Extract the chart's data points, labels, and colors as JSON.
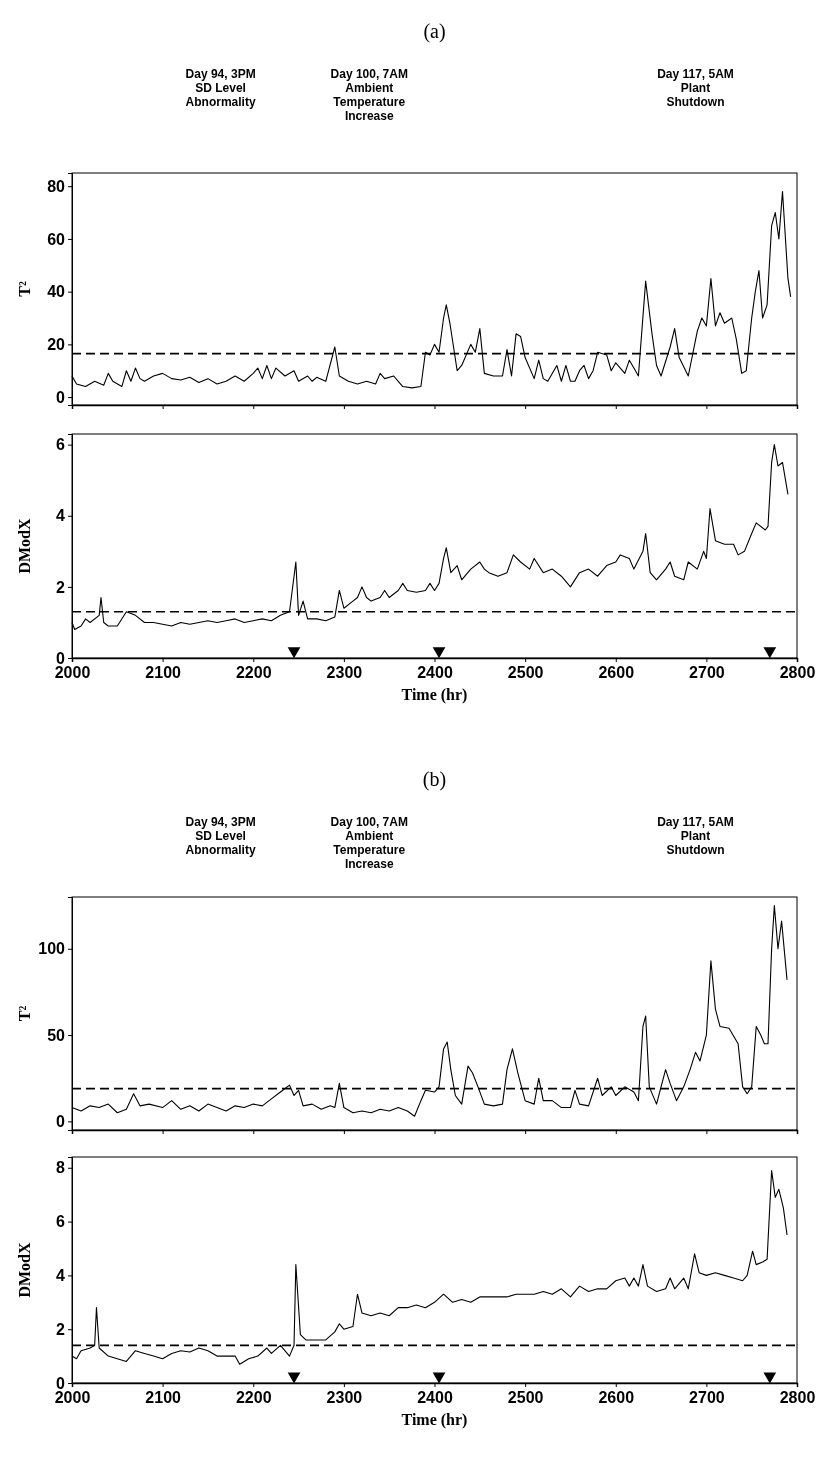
{
  "chart_data": [
    {
      "type": "line",
      "title": "(a)",
      "annotations": [
        "Day 94, 3PM\nSD Level\nAbnormality",
        "Day 100, 7AM\nAmbient\nTemperature\nIncrease",
        "Day 117, 5AM\nPlant\nShutdown"
      ],
      "ylabel": "T²",
      "xlim": [
        2000,
        2800
      ],
      "xticks": [
        2000,
        2100,
        2200,
        2300,
        2400,
        2500,
        2600,
        2700,
        2800
      ],
      "ylim": [
        -3,
        85
      ],
      "yticks": [
        0,
        20,
        40,
        60,
        80
      ],
      "tick_labels": "y",
      "series": [
        {
          "color": "#000000",
          "x": [
            2000,
            2005,
            2015,
            2025,
            2035,
            2040,
            2045,
            2055,
            2060,
            2065,
            2070,
            2075,
            2080,
            2090,
            2100,
            2110,
            2120,
            2130,
            2140,
            2150,
            2160,
            2170,
            2180,
            2190,
            2200,
            2205,
            2210,
            2215,
            2220,
            2225,
            2235,
            2245,
            2250,
            2260,
            2265,
            2270,
            2280,
            2290,
            2295,
            2305,
            2315,
            2325,
            2335,
            2340,
            2345,
            2355,
            2360,
            2365,
            2375,
            2385,
            2390,
            2395,
            2400,
            2405,
            2410,
            2413,
            2417,
            2425,
            2430,
            2440,
            2445,
            2450,
            2455,
            2465,
            2475,
            2480,
            2485,
            2490,
            2495,
            2500,
            2510,
            2515,
            2520,
            2525,
            2535,
            2540,
            2545,
            2550,
            2555,
            2560,
            2565,
            2570,
            2575,
            2580,
            2590,
            2595,
            2600,
            2610,
            2615,
            2620,
            2625,
            2633,
            2640,
            2645,
            2650,
            2660,
            2665,
            2670,
            2680,
            2690,
            2695,
            2700,
            2705,
            2710,
            2715,
            2720,
            2728,
            2733,
            2739,
            2744,
            2750,
            2754,
            2758,
            2762,
            2767,
            2772,
            2776,
            2780,
            2784,
            2790,
            2793
          ],
          "values": [
            8,
            5,
            4,
            6,
            4.5,
            9,
            6,
            4,
            10,
            6,
            11,
            7,
            6,
            8,
            9,
            7,
            6.5,
            7.5,
            5.5,
            7,
            5,
            6,
            8,
            6,
            9,
            11,
            7,
            12,
            7,
            11,
            8,
            10,
            6,
            8,
            6,
            7.5,
            6,
            19,
            8,
            6,
            5,
            6,
            5,
            9,
            7,
            8,
            6,
            4,
            3.5,
            4,
            17,
            16,
            20,
            17,
            30,
            35,
            28,
            10,
            12,
            20,
            17,
            26,
            9,
            8,
            8,
            18,
            8,
            24,
            23,
            15,
            7,
            14,
            7,
            6,
            12,
            6,
            12,
            6,
            6,
            10,
            12,
            7,
            10,
            17,
            16,
            10,
            13,
            9,
            14,
            11,
            8,
            44,
            24,
            12,
            8,
            19,
            26,
            15,
            8,
            25,
            30,
            27,
            45,
            27,
            32,
            28,
            30,
            22,
            9,
            10,
            30,
            40,
            48,
            30,
            35,
            65,
            70,
            60,
            78,
            45,
            38
          ]
        }
      ],
      "ref_lines": [
        {
          "axis": "y",
          "value": 16.5,
          "line_style": "dashed",
          "color": "#000000"
        }
      ]
    },
    {
      "type": "line",
      "xlabel": "Time (hr)",
      "ylabel": "DModX",
      "xlim": [
        2000,
        2800
      ],
      "xticks": [
        2000,
        2100,
        2200,
        2300,
        2400,
        2500,
        2600,
        2700,
        2800
      ],
      "ylim": [
        0,
        6.3
      ],
      "yticks": [
        0,
        2,
        4,
        6
      ],
      "series": [
        {
          "color": "#000000",
          "x": [
            2000,
            2003,
            2010,
            2015,
            2020,
            2030,
            2032,
            2035,
            2040,
            2050,
            2060,
            2070,
            2080,
            2090,
            2100,
            2110,
            2120,
            2130,
            2140,
            2150,
            2160,
            2170,
            2180,
            2190,
            2200,
            2210,
            2220,
            2230,
            2240,
            2247,
            2250,
            2255,
            2260,
            2270,
            2280,
            2290,
            2295,
            2300,
            2310,
            2315,
            2320,
            2325,
            2330,
            2340,
            2345,
            2350,
            2360,
            2365,
            2370,
            2380,
            2390,
            2395,
            2400,
            2405,
            2410,
            2413,
            2418,
            2425,
            2430,
            2440,
            2450,
            2455,
            2460,
            2470,
            2480,
            2487,
            2495,
            2505,
            2510,
            2520,
            2530,
            2540,
            2550,
            2560,
            2570,
            2580,
            2590,
            2600,
            2605,
            2615,
            2620,
            2630,
            2633,
            2638,
            2645,
            2655,
            2660,
            2665,
            2675,
            2680,
            2690,
            2697,
            2700,
            2704,
            2710,
            2720,
            2730,
            2735,
            2742,
            2750,
            2755,
            2765,
            2768,
            2772,
            2775,
            2779,
            2784,
            2790
          ],
          "values": [
            1.0,
            0.8,
            0.9,
            1.1,
            1.0,
            1.2,
            1.7,
            1.0,
            0.9,
            0.9,
            1.3,
            1.2,
            1.0,
            1.0,
            0.95,
            0.9,
            1.0,
            0.95,
            1.0,
            1.05,
            1.0,
            1.05,
            1.1,
            1.0,
            1.05,
            1.1,
            1.05,
            1.2,
            1.3,
            2.7,
            1.2,
            1.6,
            1.1,
            1.1,
            1.05,
            1.15,
            1.9,
            1.4,
            1.6,
            1.7,
            2.0,
            1.7,
            1.6,
            1.7,
            1.9,
            1.7,
            1.9,
            2.1,
            1.9,
            1.85,
            1.9,
            2.1,
            1.9,
            2.1,
            2.8,
            3.1,
            2.4,
            2.6,
            2.2,
            2.5,
            2.7,
            2.5,
            2.4,
            2.3,
            2.4,
            2.9,
            2.7,
            2.5,
            2.8,
            2.4,
            2.5,
            2.3,
            2.0,
            2.4,
            2.5,
            2.3,
            2.6,
            2.7,
            2.9,
            2.8,
            2.5,
            3.0,
            3.5,
            2.4,
            2.2,
            2.5,
            2.7,
            2.3,
            2.2,
            2.7,
            2.5,
            3.0,
            2.8,
            4.2,
            3.3,
            3.2,
            3.2,
            2.9,
            3.0,
            3.5,
            3.8,
            3.6,
            3.7,
            5.5,
            6.0,
            5.4,
            5.5,
            4.6
          ]
        },
        {
          "type": "scatter",
          "marker": "triangle",
          "color": "#000000",
          "x": [
            2245,
            2405,
            2770
          ],
          "values": [
            0.2,
            0.2,
            0.2
          ]
        }
      ],
      "ref_lines": [
        {
          "axis": "y",
          "value": 1.3,
          "line_style": "dashed",
          "color": "#000000"
        }
      ]
    },
    {
      "type": "line",
      "title": "(b)",
      "annotations": [
        "Day 94, 3PM\nSD Level\nAbnormality",
        "Day 100, 7AM\nAmbient\nTemperature\nIncrease",
        "Day 117, 5AM\nPlant\nShutdown"
      ],
      "ylabel": "T²",
      "xlim": [
        2000,
        2800
      ],
      "xticks": [
        2000,
        2100,
        2200,
        2300,
        2400,
        2500,
        2600,
        2700,
        2800
      ],
      "ylim": [
        -5,
        130
      ],
      "yticks": [
        0,
        50,
        100
      ],
      "tick_labels": "y",
      "series": [
        {
          "color": "#000000",
          "x": [
            2000,
            2010,
            2020,
            2030,
            2040,
            2050,
            2060,
            2068,
            2075,
            2085,
            2100,
            2110,
            2120,
            2130,
            2140,
            2150,
            2160,
            2170,
            2180,
            2190,
            2200,
            2210,
            2220,
            2230,
            2240,
            2245,
            2250,
            2255,
            2265,
            2275,
            2285,
            2290,
            2295,
            2300,
            2310,
            2320,
            2330,
            2340,
            2350,
            2360,
            2370,
            2378,
            2385,
            2390,
            2400,
            2405,
            2410,
            2414,
            2418,
            2423,
            2430,
            2437,
            2442,
            2448,
            2455,
            2465,
            2475,
            2480,
            2486,
            2492,
            2500,
            2510,
            2515,
            2520,
            2530,
            2540,
            2550,
            2555,
            2560,
            2570,
            2580,
            2585,
            2595,
            2600,
            2610,
            2620,
            2625,
            2630,
            2633,
            2637,
            2645,
            2655,
            2660,
            2667,
            2675,
            2682,
            2688,
            2693,
            2700,
            2705,
            2710,
            2715,
            2725,
            2735,
            2740,
            2745,
            2750,
            2755,
            2760,
            2764,
            2768,
            2772,
            2775,
            2779,
            2783,
            2789
          ],
          "values": [
            8,
            6,
            9,
            8,
            10,
            5,
            7,
            16,
            9,
            10,
            8,
            12,
            7,
            9,
            6,
            10,
            8,
            6,
            9,
            8,
            10,
            9,
            13,
            17,
            21,
            15,
            18,
            9,
            10,
            7,
            9,
            8,
            22,
            8,
            5,
            6,
            5,
            7,
            6,
            8,
            6,
            3,
            12,
            18,
            17,
            20,
            42,
            46,
            30,
            15,
            10,
            32,
            28,
            20,
            10,
            9,
            10,
            30,
            42,
            28,
            12,
            10,
            25,
            12,
            12,
            8,
            8,
            18,
            10,
            9,
            25,
            15,
            20,
            15,
            20,
            17,
            12,
            55,
            61,
            20,
            10,
            30,
            22,
            12,
            20,
            30,
            40,
            35,
            50,
            93,
            65,
            55,
            54,
            45,
            20,
            16,
            20,
            55,
            50,
            45,
            45,
            100,
            125,
            100,
            116,
            82
          ]
        }
      ],
      "ref_lines": [
        {
          "axis": "y",
          "value": 19,
          "line_style": "dashed",
          "color": "#000000"
        }
      ]
    },
    {
      "type": "line",
      "xlabel": "Time (hr)",
      "ylabel": "DModX",
      "xlim": [
        2000,
        2800
      ],
      "xticks": [
        2000,
        2100,
        2200,
        2300,
        2400,
        2500,
        2600,
        2700,
        2800
      ],
      "ylim": [
        0,
        8.4
      ],
      "yticks": [
        0,
        2,
        4,
        6,
        8
      ],
      "series": [
        {
          "color": "#000000",
          "x": [
            2000,
            2005,
            2010,
            2020,
            2025,
            2027,
            2030,
            2040,
            2050,
            2060,
            2070,
            2080,
            2090,
            2100,
            2110,
            2120,
            2130,
            2140,
            2150,
            2160,
            2170,
            2180,
            2185,
            2195,
            2205,
            2215,
            2220,
            2230,
            2240,
            2245,
            2247,
            2252,
            2258,
            2270,
            2280,
            2290,
            2295,
            2300,
            2310,
            2315,
            2320,
            2330,
            2340,
            2350,
            2360,
            2370,
            2380,
            2390,
            2400,
            2410,
            2420,
            2430,
            2440,
            2450,
            2460,
            2470,
            2480,
            2490,
            2500,
            2510,
            2520,
            2530,
            2540,
            2550,
            2560,
            2570,
            2580,
            2590,
            2600,
            2610,
            2615,
            2620,
            2625,
            2630,
            2635,
            2645,
            2655,
            2660,
            2665,
            2675,
            2680,
            2687,
            2692,
            2700,
            2710,
            2720,
            2730,
            2740,
            2745,
            2751,
            2755,
            2762,
            2767,
            2772,
            2776,
            2780,
            2785,
            2789
          ],
          "values": [
            1.0,
            0.9,
            1.2,
            1.3,
            1.4,
            2.8,
            1.3,
            1.0,
            0.9,
            0.8,
            1.2,
            1.1,
            1.0,
            0.9,
            1.1,
            1.2,
            1.15,
            1.3,
            1.2,
            1.0,
            1.0,
            1.0,
            0.7,
            0.9,
            1.0,
            1.3,
            1.1,
            1.4,
            1.0,
            1.4,
            4.4,
            1.8,
            1.6,
            1.6,
            1.6,
            1.9,
            2.2,
            2.0,
            2.1,
            3.3,
            2.6,
            2.5,
            2.6,
            2.5,
            2.8,
            2.8,
            2.9,
            2.8,
            3.0,
            3.3,
            3.0,
            3.1,
            3.0,
            3.2,
            3.2,
            3.2,
            3.2,
            3.3,
            3.3,
            3.3,
            3.4,
            3.3,
            3.5,
            3.2,
            3.6,
            3.4,
            3.5,
            3.5,
            3.8,
            3.9,
            3.6,
            3.9,
            3.6,
            4.4,
            3.6,
            3.4,
            3.5,
            3.9,
            3.5,
            3.9,
            3.5,
            4.8,
            4.1,
            4.0,
            4.1,
            4.0,
            3.9,
            3.8,
            4.0,
            4.9,
            4.4,
            4.5,
            4.6,
            7.9,
            6.9,
            7.2,
            6.5,
            5.5
          ]
        },
        {
          "type": "scatter",
          "marker": "triangle",
          "color": "#000000",
          "x": [
            2245,
            2405,
            2770
          ],
          "values": [
            0.25,
            0.25,
            0.25
          ]
        }
      ],
      "ref_lines": [
        {
          "axis": "y",
          "value": 1.4,
          "line_style": "dashed",
          "color": "#000000"
        }
      ]
    }
  ]
}
